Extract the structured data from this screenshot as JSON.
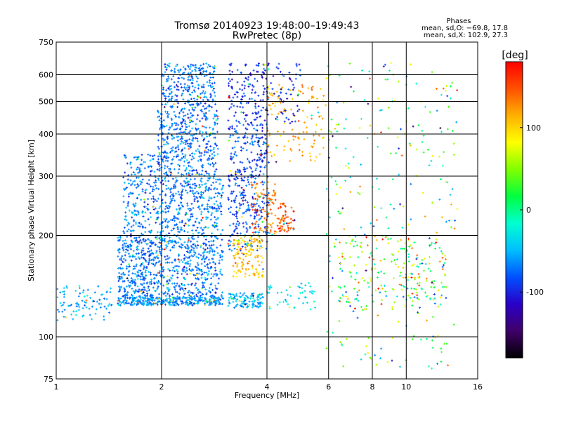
{
  "chart_data": {
    "type": "scatter",
    "title": "Tromsø 20140923 19:48:00–19:49:43",
    "subtitle": "RwPretec (8p)",
    "xlabel": "Frequency [MHz]",
    "ylabel": "Stationary phase Virtual Height [km]",
    "x_scale": "log",
    "y_scale": "log",
    "xlim": [
      1,
      16
    ],
    "ylim": [
      75,
      750
    ],
    "x_ticks": [
      1,
      2,
      4,
      6,
      8,
      10,
      16
    ],
    "y_ticks": [
      75,
      100,
      200,
      300,
      400,
      500,
      600,
      750
    ],
    "grid": true,
    "stats": {
      "heading": "Phases",
      "line_o": "mean, sd,O: −69.8, 17.8",
      "line_x": "mean, sd,X: 102.9, 27.3"
    },
    "colorbar": {
      "label": "[deg]",
      "ticks": [
        100,
        0,
        -100
      ],
      "min": -180,
      "max": 180,
      "colors": [
        "#000000",
        "#40006a",
        "#2a00c8",
        "#0050ff",
        "#00bfff",
        "#00ffd0",
        "#00ff40",
        "#80ff00",
        "#ffff00",
        "#ffb000",
        "#ff5000",
        "#ff0000"
      ]
    },
    "clusters": [
      {
        "x": [
          1.0,
          1.45
        ],
        "y": [
          112,
          142
        ],
        "phase": -55,
        "count": 90
      },
      {
        "x": [
          1.5,
          1.95
        ],
        "y": [
          125,
          200
        ],
        "phase": -70,
        "count": 380
      },
      {
        "x": [
          1.55,
          1.95
        ],
        "y": [
          200,
          350
        ],
        "phase": -70,
        "count": 210
      },
      {
        "x": [
          1.95,
          3.0
        ],
        "y": [
          125,
          300
        ],
        "phase": -68,
        "count": 850
      },
      {
        "x": [
          1.95,
          2.9
        ],
        "y": [
          300,
          480
        ],
        "phase": -72,
        "count": 420
      },
      {
        "x": [
          2.0,
          2.85
        ],
        "y": [
          480,
          650
        ],
        "phase": -74,
        "count": 260
      },
      {
        "x": [
          1.5,
          3.0
        ],
        "y": [
          124,
          131
        ],
        "phase": -60,
        "count": 240
      },
      {
        "x": [
          3.1,
          4.05
        ],
        "y": [
          180,
          430
        ],
        "phase": -85,
        "count": 380
      },
      {
        "x": [
          3.1,
          4.05
        ],
        "y": [
          430,
          650
        ],
        "phase": -95,
        "count": 140
      },
      {
        "x": [
          3.1,
          3.9
        ],
        "y": [
          122,
          135
        ],
        "phase": -50,
        "count": 110
      },
      {
        "x": [
          3.2,
          3.9
        ],
        "y": [
          150,
          200
        ],
        "phase": 105,
        "count": 140
      },
      {
        "x": [
          3.6,
          4.3
        ],
        "y": [
          200,
          290
        ],
        "phase": 135,
        "count": 90
      },
      {
        "x": [
          4.3,
          4.8
        ],
        "y": [
          205,
          250
        ],
        "phase": 150,
        "count": 60
      },
      {
        "x": [
          4.0,
          5.9
        ],
        "y": [
          330,
          560
        ],
        "phase": 115,
        "count": 120
      },
      {
        "x": [
          3.9,
          5.0
        ],
        "y": [
          430,
          650
        ],
        "phase": -100,
        "count": 60
      },
      {
        "x": [
          4.0,
          5.5
        ],
        "y": [
          120,
          145
        ],
        "phase": -30,
        "count": 50
      },
      {
        "x": [
          5.9,
          14.0
        ],
        "y": [
          80,
          650
        ],
        "phase": 10,
        "count": 280
      },
      {
        "x": [
          6.4,
          13.0
        ],
        "y": [
          120,
          200
        ],
        "phase": 40,
        "count": 200
      }
    ]
  }
}
